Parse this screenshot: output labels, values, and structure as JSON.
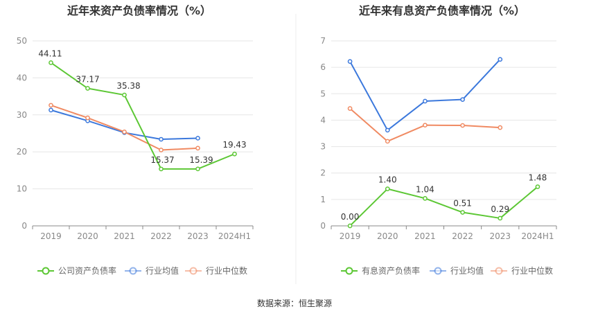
{
  "chart_data": [
    {
      "type": "line",
      "title": "近年来资产负债率情况（%）",
      "categories": [
        "2019",
        "2020",
        "2021",
        "2022",
        "2023",
        "2024H1"
      ],
      "ylim": [
        0,
        50
      ],
      "yticks": [
        0,
        10,
        20,
        30,
        40,
        50
      ],
      "grid": true,
      "legend_position": "bottom",
      "series": [
        {
          "name": "公司资产负债率",
          "color": "#5cc734",
          "values": [
            44.11,
            37.17,
            35.38,
            15.37,
            15.39,
            19.43
          ],
          "labels": [
            "44.11",
            "37.17",
            "35.38",
            "15.37",
            "15.39",
            "19.43"
          ]
        },
        {
          "name": "行业均值",
          "color": "#3b78dc",
          "values": [
            31.3,
            28.4,
            25.2,
            23.4,
            23.7,
            null
          ]
        },
        {
          "name": "行业中位数",
          "color": "#f08a62",
          "values": [
            32.6,
            29.2,
            25.4,
            20.5,
            21.0,
            null
          ]
        }
      ]
    },
    {
      "type": "line",
      "title": "近年来有息资产负债率情况（%）",
      "categories": [
        "2019",
        "2020",
        "2021",
        "2022",
        "2023",
        "2024H1"
      ],
      "ylim": [
        0,
        7
      ],
      "yticks": [
        0,
        1,
        2,
        3,
        4,
        5,
        6,
        7
      ],
      "grid": true,
      "legend_position": "bottom",
      "series": [
        {
          "name": "有息资产负债率",
          "color": "#5cc734",
          "values": [
            0.0,
            1.4,
            1.04,
            0.51,
            0.29,
            1.48
          ],
          "labels": [
            "0.00",
            "1.40",
            "1.04",
            "0.51",
            "0.29",
            "1.48"
          ]
        },
        {
          "name": "行业均值",
          "color": "#3b78dc",
          "values": [
            6.22,
            3.62,
            4.72,
            4.78,
            6.3,
            null
          ]
        },
        {
          "name": "行业中位数",
          "color": "#f08a62",
          "values": [
            4.44,
            3.2,
            3.81,
            3.8,
            3.72,
            null
          ]
        }
      ]
    }
  ],
  "footer": {
    "source": "数据来源：恒生聚源"
  }
}
